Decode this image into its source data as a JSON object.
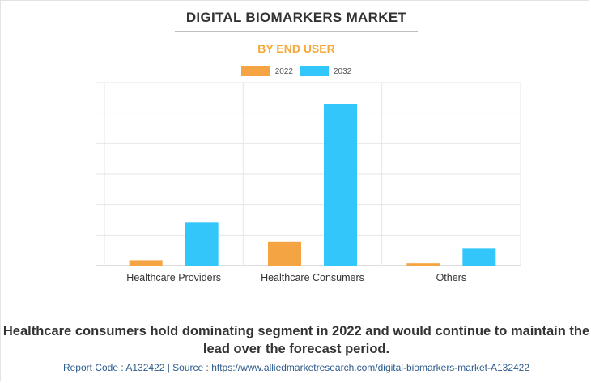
{
  "header": {
    "title": "DIGITAL BIOMARKERS MARKET",
    "subtitle": "BY END USER"
  },
  "legend": {
    "items": [
      {
        "label": "2022",
        "color": "#f4a442"
      },
      {
        "label": "2032",
        "color": "#33c6fb"
      }
    ]
  },
  "chart_data": {
    "type": "bar",
    "title": "DIGITAL BIOMARKERS MARKET",
    "subtitle": "BY END USER",
    "categories": [
      "Healthcare Providers",
      "Healthcare Consumers",
      "Others"
    ],
    "series": [
      {
        "name": "2022",
        "color": "#f4a442",
        "values": [
          0.35,
          1.55,
          0.15
        ]
      },
      {
        "name": "2032",
        "color": "#33c6fb",
        "values": [
          2.85,
          10.6,
          1.15
        ]
      }
    ],
    "ylim": [
      0,
      12
    ],
    "grid": true,
    "legend_position": "top-center",
    "xlabel": "",
    "ylabel": ""
  },
  "caption": "Healthcare consumers hold dominating segment in 2022 and would continue to maintain the lead over the forecast period.",
  "footer": "Report Code : A132422  |  Source : https://www.alliedmarketresearch.com/digital-biomarkers-market-A132422"
}
